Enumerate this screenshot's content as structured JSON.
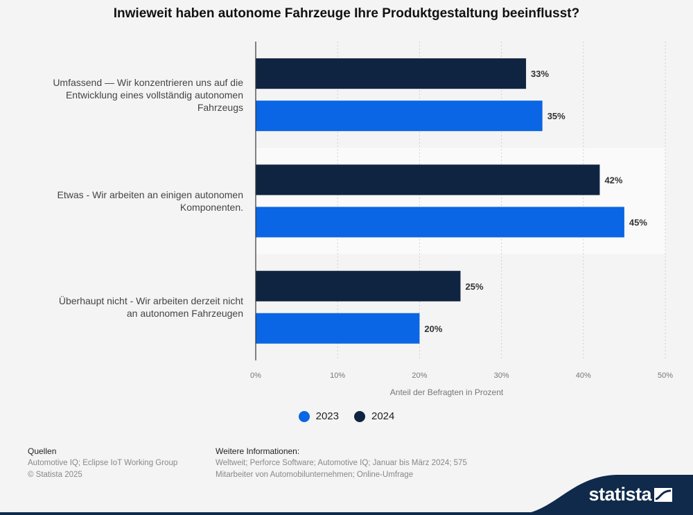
{
  "header": {
    "title": "Inwieweit haben autonome Fahrzeuge Ihre Produktgestaltung beeinflusst?"
  },
  "chart_data": {
    "type": "bar",
    "orientation": "horizontal",
    "categories": [
      "Umfassend — Wir konzentrieren uns auf die Entwicklung eines vollständig autonomen Fahrzeugs",
      "Etwas - Wir arbeiten an einigen autonomen Komponenten.",
      "Überhaupt nicht - Wir arbeiten derzeit nicht an autonomen Fahrzeugen"
    ],
    "category_lines": [
      [
        "Umfassend — Wir konzentrieren uns auf die",
        "Entwicklung eines vollständig autonomen",
        "Fahrzeugs"
      ],
      [
        "Etwas - Wir arbeiten an einigen autonomen",
        "Komponenten."
      ],
      [
        "Überhaupt nicht - Wir arbeiten derzeit nicht",
        "an autonomen Fahrzeugen"
      ]
    ],
    "series": [
      {
        "name": "2024",
        "color": "#0f2441",
        "values": [
          33,
          42,
          25
        ]
      },
      {
        "name": "2023",
        "color": "#0a66e4",
        "values": [
          35,
          45,
          20
        ]
      }
    ],
    "value_suffix": "%",
    "xlim": [
      0,
      50
    ],
    "xticks": [
      "0%",
      "10%",
      "20%",
      "30%",
      "40%",
      "50%"
    ],
    "xlabel": "Anteil der Befragten in Prozent",
    "ylabel": "",
    "grid": true,
    "legend_position": "bottom-center"
  },
  "legend": {
    "items": [
      {
        "label": "2023",
        "color": "#0a66e4"
      },
      {
        "label": "2024",
        "color": "#0f2441"
      }
    ]
  },
  "footer": {
    "sources_title": "Quellen",
    "sources_line1": "Automotive IQ; Eclipse IoT Working Group",
    "sources_line2": "© Statista 2025",
    "info_title": "Weitere Informationen:",
    "info_line1": "Weltweit; Perforce Software; Automotive IQ; Januar bis März 2024; 575",
    "info_line2": "Mitarbeiter von Automobilunternehmen; Online-Umfrage"
  },
  "brand": {
    "name": "statista",
    "accent_color": "#0f2a4a"
  }
}
